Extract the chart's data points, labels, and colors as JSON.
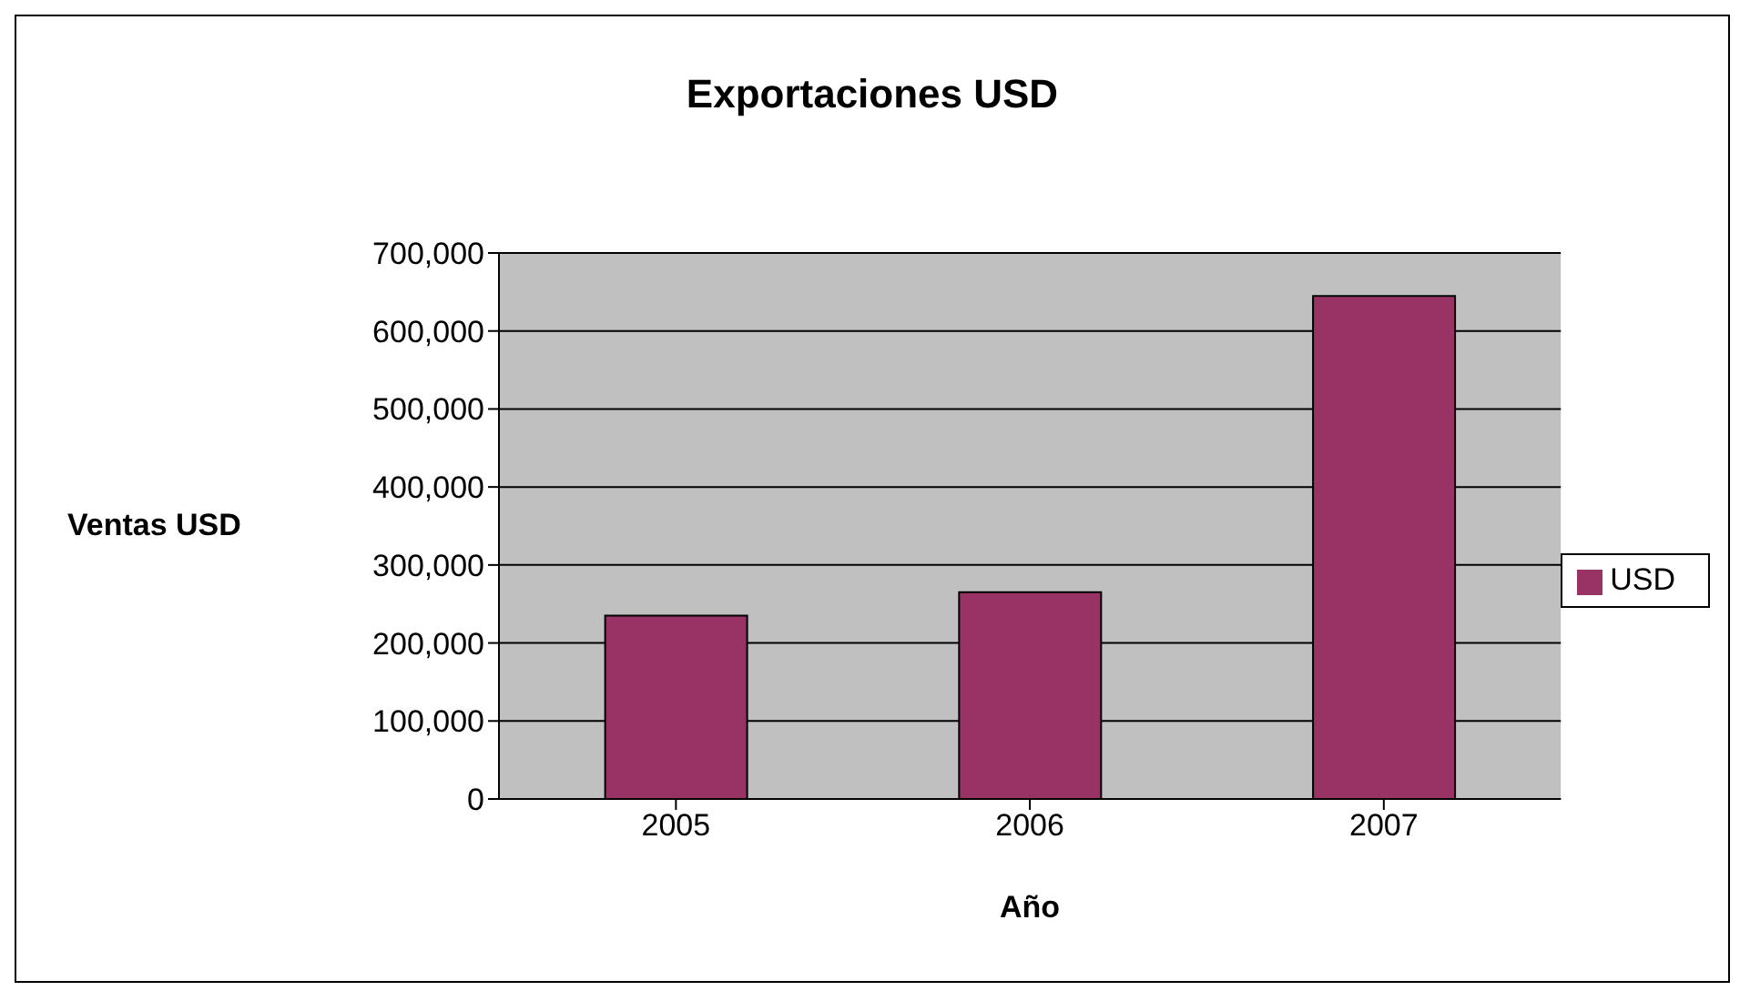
{
  "chart_data": {
    "type": "bar",
    "title": "Exportaciones USD",
    "xlabel": "Año",
    "ylabel": "Ventas USD",
    "categories": [
      "2005",
      "2006",
      "2007"
    ],
    "series": [
      {
        "name": "USD",
        "color": "#993366",
        "values": [
          235000,
          265000,
          645000
        ]
      }
    ],
    "ylim": [
      0,
      700000
    ],
    "yticks": [
      {
        "value": 0,
        "label": "0"
      },
      {
        "value": 100000,
        "label": "100,000"
      },
      {
        "value": 200000,
        "label": "200,000"
      },
      {
        "value": 300000,
        "label": "300,000"
      },
      {
        "value": 400000,
        "label": "400,000"
      },
      {
        "value": 500000,
        "label": "500,000"
      },
      {
        "value": 600000,
        "label": "600,000"
      },
      {
        "value": 700000,
        "label": "700,000"
      }
    ],
    "grid": "y",
    "legend": "right"
  }
}
